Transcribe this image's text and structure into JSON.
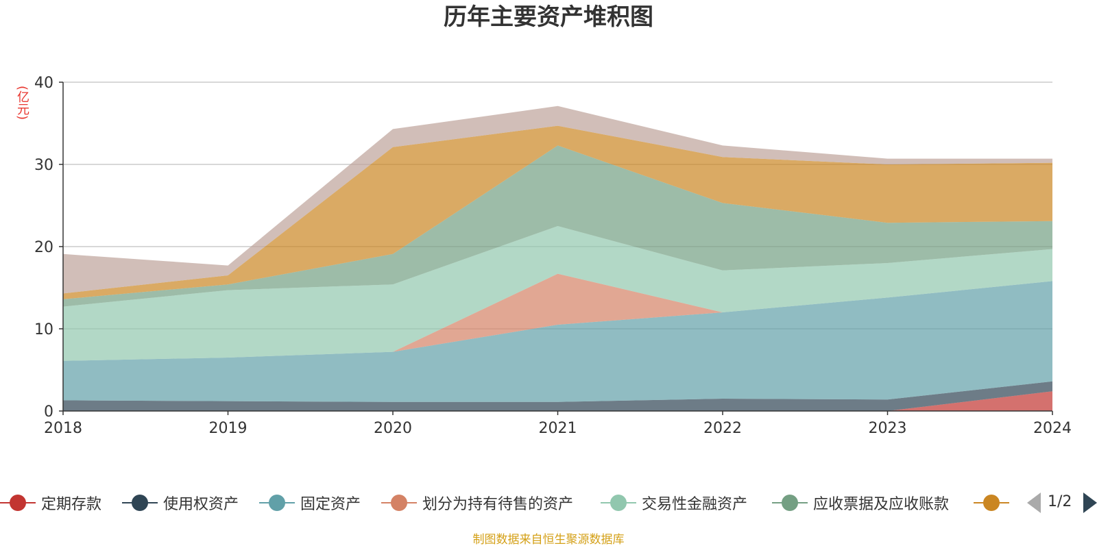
{
  "title": "历年主要资产堆积图",
  "unit": "(亿元)",
  "source_note": "制图数据来自恒生聚源数据库",
  "pager": "1/2",
  "legend_items": [
    {
      "name": "定期存款",
      "color": "#c23531"
    },
    {
      "name": "使用权资产",
      "color": "#2f4554"
    },
    {
      "name": "固定资产",
      "color": "#61a0a8"
    },
    {
      "name": "划分为持有待售的资产",
      "color": "#d48265"
    },
    {
      "name": "交易性金融资产",
      "color": "#91c7ae"
    },
    {
      "name": "应收票据及应收账款",
      "color": "#749f83"
    },
    {
      "name": "",
      "color": "#ca8622"
    }
  ],
  "chart_data": {
    "type": "area",
    "stacked": true,
    "title": "历年主要资产堆积图",
    "ylabel": "(亿元)",
    "x": [
      "2018",
      "2019",
      "2020",
      "2021",
      "2022",
      "2023",
      "2024"
    ],
    "ylim": [
      0,
      40
    ],
    "yticks": [
      0,
      10,
      20,
      30,
      40
    ],
    "grid": true,
    "legend_position": "bottom",
    "series": [
      {
        "name": "定期存款",
        "color": "#c23531",
        "values": [
          0,
          0,
          0,
          0,
          0,
          0,
          2.4
        ]
      },
      {
        "name": "使用权资产",
        "color": "#2f4554",
        "values": [
          1.3,
          1.2,
          1.1,
          1.1,
          1.5,
          1.4,
          1.2
        ]
      },
      {
        "name": "固定资产",
        "color": "#61a0a8",
        "values": [
          4.8,
          5.3,
          6.1,
          9.4,
          10.5,
          12.4,
          12.2
        ]
      },
      {
        "name": "划分为持有待售的资产",
        "color": "#d48265",
        "values": [
          0,
          0,
          0,
          6.2,
          0,
          0,
          0
        ]
      },
      {
        "name": "交易性金融资产",
        "color": "#91c7ae",
        "values": [
          6.6,
          8.2,
          8.2,
          5.8,
          5.1,
          4.2,
          3.9
        ]
      },
      {
        "name": "应收票据及应收账款",
        "color": "#749f83",
        "values": [
          0.9,
          0.7,
          3.7,
          9.8,
          8.2,
          4.9,
          3.4
        ]
      },
      {
        "color": "#ca8622",
        "values": [
          0.7,
          1.1,
          13.0,
          2.4,
          5.6,
          7.1,
          7.1
        ]
      },
      {
        "color": "#bda29a",
        "values": [
          4.8,
          1.2,
          2.2,
          2.4,
          1.4,
          0.7,
          0.5
        ]
      }
    ]
  }
}
